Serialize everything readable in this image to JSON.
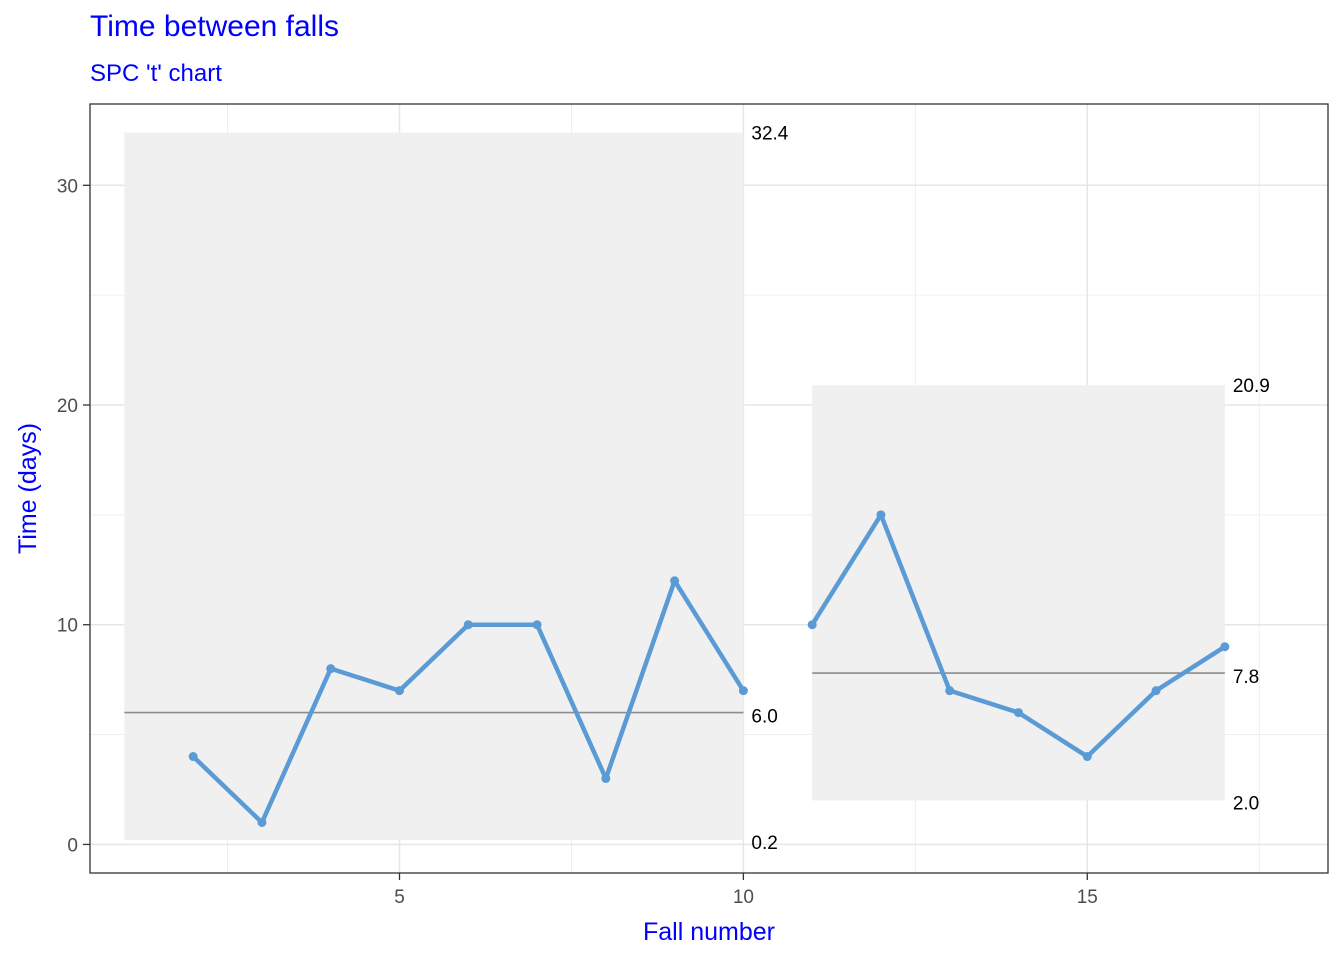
{
  "title": "Time between falls",
  "subtitle": "SPC 't' chart",
  "chart_data": {
    "type": "line",
    "title": "Time between falls",
    "subtitle": "SPC 't' chart",
    "xlabel": "Fall number",
    "ylabel": "Time (days)",
    "xlim": [
      0.5,
      18.5
    ],
    "ylim": [
      -1.3,
      33.7
    ],
    "x_ticks": [
      5,
      10,
      15
    ],
    "x_tick_labels": [
      "5",
      "10",
      "15"
    ],
    "y_ticks": [
      0,
      10,
      20,
      30
    ],
    "y_tick_labels": [
      "0",
      "10",
      "20",
      "30"
    ],
    "grid": true,
    "colors": {
      "series": "#5b9bd5",
      "centre_line": "#8c8c8c",
      "limits_band": "#f0f0f0",
      "text": "#0000ff"
    },
    "segments": [
      {
        "x": [
          2,
          3,
          4,
          5,
          6,
          7,
          8,
          9,
          10
        ],
        "values": [
          4,
          1,
          8,
          7,
          10,
          10,
          3,
          12,
          7
        ],
        "band_x": [
          1,
          10
        ],
        "centre": 6.0,
        "lower": 0.2,
        "upper": 32.4,
        "centre_label": "6.0",
        "lower_label": "0.2",
        "upper_label": "32.4"
      },
      {
        "x": [
          11,
          12,
          13,
          14,
          15,
          16,
          17
        ],
        "values": [
          10,
          15,
          7,
          6,
          4,
          7,
          9
        ],
        "band_x": [
          11,
          17
        ],
        "centre": 7.8,
        "lower": 2.0,
        "upper": 20.9,
        "centre_label": "7.8",
        "lower_label": "2.0",
        "upper_label": "20.9"
      }
    ]
  }
}
